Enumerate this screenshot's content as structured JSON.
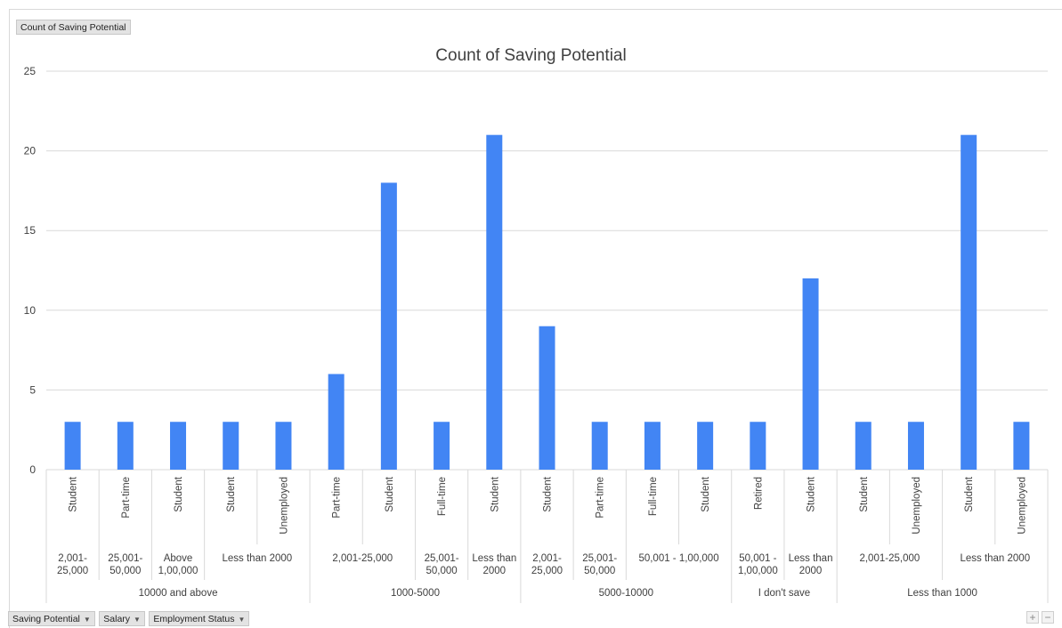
{
  "value_field_button": {
    "label": "Count of Saving Potential"
  },
  "axis_field_buttons": [
    {
      "label": "Saving Potential",
      "icon": "dropdown-arrow-icon"
    },
    {
      "label": "Salary",
      "icon": "dropdown-arrow-icon"
    },
    {
      "label": "Employment Status",
      "icon": "dropdown-arrow-icon"
    }
  ],
  "zoom_buttons": {
    "plus": "+",
    "minus": "−"
  },
  "colors": {
    "bar": "#4285f4",
    "grid": "#d9d9d9",
    "text": "#404040"
  },
  "chart_data": {
    "type": "bar",
    "title": "Count of Saving Potential",
    "ylim": [
      0,
      25
    ],
    "yticks": [
      0,
      5,
      10,
      15,
      20,
      25
    ],
    "grid": true,
    "legend": "none",
    "categories": [
      "Student",
      "Part-time",
      "Student",
      "Student",
      "Unemployed",
      "Part-time",
      "Student",
      "Full-time",
      "Student",
      "Student",
      "Part-time",
      "Full-time",
      "Student",
      "Retired",
      "Student",
      "Student",
      "Unemployed",
      "Student",
      "Unemployed"
    ],
    "values": [
      3,
      3,
      3,
      3,
      3,
      6,
      18,
      3,
      21,
      9,
      3,
      3,
      3,
      3,
      12,
      3,
      3,
      21,
      3
    ],
    "salary_groups": [
      {
        "label": "2,001-\n25,000",
        "count": 1
      },
      {
        "label": "25,001-\n50,000",
        "count": 1
      },
      {
        "label": "Above\n1,00,000",
        "count": 1
      },
      {
        "label": "Less than 2000",
        "count": 2
      },
      {
        "label": "2,001-25,000",
        "count": 2
      },
      {
        "label": "25,001-\n50,000",
        "count": 1
      },
      {
        "label": "Less than\n2000",
        "count": 1
      },
      {
        "label": "2,001-\n25,000",
        "count": 1
      },
      {
        "label": "25,001-\n50,000",
        "count": 1
      },
      {
        "label": "50,001 - 1,00,000",
        "count": 2
      },
      {
        "label": "50,001 -\n1,00,000",
        "count": 1
      },
      {
        "label": "Less than\n2000",
        "count": 1
      },
      {
        "label": "2,001-25,000",
        "count": 2
      },
      {
        "label": "Less than 2000",
        "count": 2
      }
    ],
    "saving_groups": [
      {
        "label": "10000 and above",
        "count": 5
      },
      {
        "label": "1000-5000",
        "count": 4
      },
      {
        "label": "5000-10000",
        "count": 4
      },
      {
        "label": "I don't save",
        "count": 2
      },
      {
        "label": "Less than 1000",
        "count": 4
      }
    ]
  }
}
